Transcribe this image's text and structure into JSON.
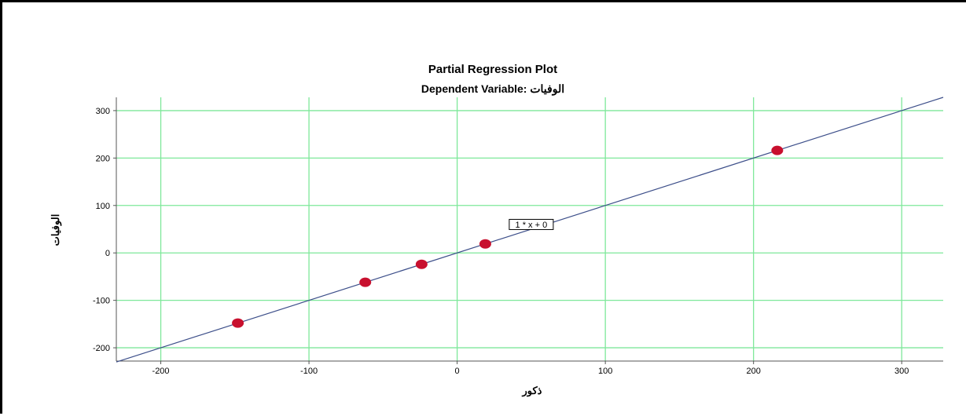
{
  "chart_data": {
    "type": "scatter",
    "title": "Partial Regression Plot",
    "subtitle": "Dependent Variable: الوفيات",
    "xlabel": "ذكور",
    "ylabel": "الوفيات",
    "xlim": [
      -230,
      328
    ],
    "ylim": [
      -228,
      328
    ],
    "x_ticks": [
      -200,
      -100,
      0,
      100,
      200,
      300
    ],
    "x_tick_labels": [
      "-200",
      "-100",
      "0",
      "100",
      "200",
      "300"
    ],
    "y_ticks": [
      -200,
      -100,
      0,
      100,
      200,
      300
    ],
    "y_tick_labels": [
      "-200",
      "-100",
      "0",
      "100",
      "200",
      "300"
    ],
    "points": [
      {
        "x": -148,
        "y": -148
      },
      {
        "x": -62,
        "y": -62
      },
      {
        "x": -24,
        "y": -24
      },
      {
        "x": 19,
        "y": 19
      },
      {
        "x": 216,
        "y": 216
      }
    ],
    "fit_line": {
      "slope": 1,
      "intercept": 0,
      "label": "1 * x + 0",
      "label_at": {
        "x": 50,
        "y": 60
      }
    },
    "grid": true,
    "colors": {
      "grid": "#7ee89a",
      "points": "#c8102e",
      "line": "#3d4f8a",
      "axis": "#555555"
    }
  }
}
